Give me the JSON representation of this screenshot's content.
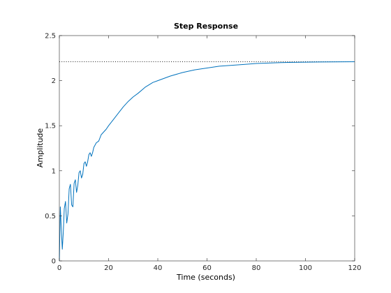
{
  "chart_data": {
    "type": "line",
    "title": "Step Response",
    "xlabel": "Time (seconds)",
    "ylabel": "Amplitude",
    "xlim": [
      0,
      120
    ],
    "ylim": [
      0,
      2.5
    ],
    "xticks": [
      0,
      20,
      40,
      60,
      80,
      100,
      120
    ],
    "yticks": [
      0,
      0.5,
      1,
      1.5,
      2,
      2.5
    ],
    "x_tick_labels": [
      "0",
      "20",
      "40",
      "60",
      "80",
      "100",
      "120"
    ],
    "y_tick_labels": [
      "0",
      "0.5",
      "1",
      "1.5",
      "2",
      "2.5"
    ],
    "grid": false,
    "steady_state": 2.21,
    "series": [
      {
        "color": "#0072bd",
        "x": [
          0,
          0.4,
          0.8,
          1.2,
          1.6,
          2.0,
          2.5,
          3.0,
          3.5,
          4.0,
          4.5,
          5.0,
          5.5,
          6.0,
          6.5,
          7.0,
          7.5,
          8.0,
          8.5,
          9.0,
          9.5,
          10.0,
          10.5,
          11.0,
          11.5,
          12.0,
          12.5,
          13.0,
          13.5,
          14.0,
          15,
          16,
          17,
          18,
          19,
          20,
          22,
          24,
          26,
          28,
          30,
          32,
          35,
          38,
          40,
          45,
          50,
          55,
          60,
          65,
          70,
          75,
          80,
          85,
          90,
          95,
          100,
          105,
          110,
          115,
          120
        ],
        "y": [
          0,
          0.6,
          0.35,
          0.13,
          0.32,
          0.58,
          0.66,
          0.42,
          0.52,
          0.8,
          0.85,
          0.62,
          0.6,
          0.86,
          0.9,
          0.76,
          0.84,
          0.98,
          1.0,
          0.92,
          0.96,
          1.08,
          1.1,
          1.05,
          1.1,
          1.18,
          1.2,
          1.16,
          1.2,
          1.26,
          1.31,
          1.33,
          1.4,
          1.43,
          1.46,
          1.5,
          1.57,
          1.64,
          1.71,
          1.77,
          1.82,
          1.86,
          1.93,
          1.98,
          2.0,
          2.05,
          2.09,
          2.12,
          2.14,
          2.16,
          2.17,
          2.18,
          2.19,
          2.195,
          2.2,
          2.203,
          2.205,
          2.207,
          2.208,
          2.209,
          2.21
        ]
      }
    ]
  }
}
